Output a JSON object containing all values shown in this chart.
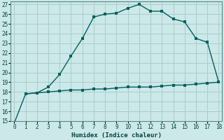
{
  "xlabel": "Humidex (Indice chaleur)",
  "ylabel": "",
  "background_color": "#cce8e8",
  "grid_color": "#aacccc",
  "line_color": "#006060",
  "xlim": [
    -0.3,
    18.3
  ],
  "ylim": [
    15,
    27.3
  ],
  "xticks": [
    0,
    1,
    2,
    3,
    4,
    5,
    6,
    7,
    8,
    9,
    10,
    11,
    12,
    13,
    14,
    15,
    16,
    17,
    18
  ],
  "yticks": [
    15,
    16,
    17,
    18,
    19,
    20,
    21,
    22,
    23,
    24,
    25,
    26,
    27
  ],
  "curve1_x": [
    0,
    1,
    2,
    3,
    4,
    5,
    6,
    7,
    8,
    9,
    10,
    11,
    12,
    13,
    14,
    15,
    16,
    17,
    18
  ],
  "curve1_y": [
    14.8,
    17.8,
    17.9,
    18.5,
    19.8,
    21.7,
    23.5,
    25.7,
    26.0,
    26.1,
    26.6,
    27.0,
    26.3,
    26.3,
    25.5,
    25.2,
    23.5,
    23.1,
    19.0
  ],
  "curve2_x": [
    1,
    2,
    3,
    4,
    5,
    6,
    7,
    8,
    9,
    10,
    11,
    12,
    13,
    14,
    15,
    16,
    17,
    18
  ],
  "curve2_y": [
    17.8,
    17.9,
    18.0,
    18.1,
    18.2,
    18.2,
    18.3,
    18.3,
    18.4,
    18.5,
    18.5,
    18.5,
    18.6,
    18.7,
    18.7,
    18.8,
    18.9,
    19.0
  ]
}
